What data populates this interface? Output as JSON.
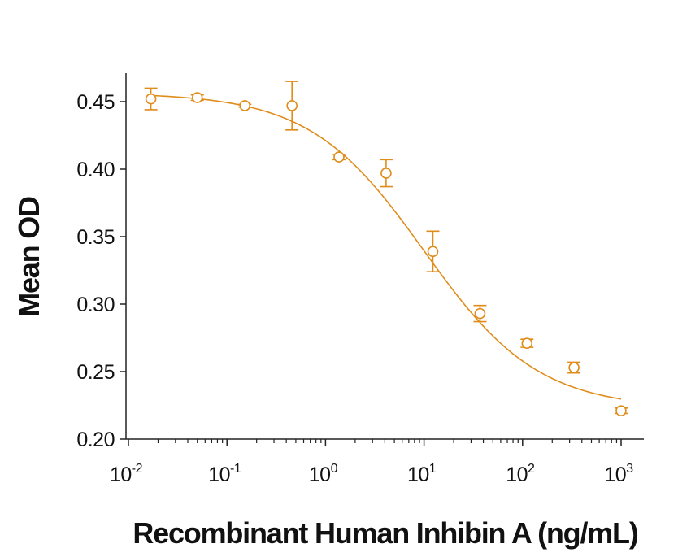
{
  "chart_data": {
    "type": "scatter",
    "title": "",
    "xlabel": "Recombinant Human Inhibin A (ng/mL)",
    "ylabel": "Mean OD",
    "x_scale": "log",
    "xlim": [
      0.01,
      1000
    ],
    "ylim": [
      0.2,
      0.47
    ],
    "grid": false,
    "legend": "none",
    "color": "#E08C1B",
    "y_ticks": [
      "0.20",
      "0.25",
      "0.30",
      "0.35",
      "0.40",
      "0.45"
    ],
    "y_tick_values": [
      0.2,
      0.25,
      0.3,
      0.35,
      0.4,
      0.45
    ],
    "x_ticks": [
      {
        "base": "10",
        "exp": "-2",
        "value": 0.01
      },
      {
        "base": "10",
        "exp": "-1",
        "value": 0.1
      },
      {
        "base": "10",
        "exp": "0",
        "value": 1
      },
      {
        "base": "10",
        "exp": "1",
        "value": 10
      },
      {
        "base": "10",
        "exp": "2",
        "value": 100
      },
      {
        "base": "10",
        "exp": "3",
        "value": 1000
      }
    ],
    "points": [
      {
        "x": 0.0169,
        "y": 0.452,
        "err": 0.008
      },
      {
        "x": 0.05,
        "y": 0.453,
        "err": 0.002
      },
      {
        "x": 0.152,
        "y": 0.447,
        "err": 0.001
      },
      {
        "x": 0.457,
        "y": 0.447,
        "err": 0.018
      },
      {
        "x": 1.37,
        "y": 0.409,
        "err": 0.002
      },
      {
        "x": 4.12,
        "y": 0.397,
        "err": 0.01
      },
      {
        "x": 12.3,
        "y": 0.339,
        "err": 0.015
      },
      {
        "x": 37.0,
        "y": 0.293,
        "err": 0.006
      },
      {
        "x": 111,
        "y": 0.271,
        "err": 0.003
      },
      {
        "x": 333,
        "y": 0.253,
        "err": 0.004
      },
      {
        "x": 1000,
        "y": 0.221,
        "err": 0.002
      }
    ],
    "fit_curve": {
      "type": "4PL",
      "top": 0.4565,
      "bottom": 0.2225,
      "ec50": 10.0,
      "hill": 0.75,
      "x_range": [
        0.0169,
        1000
      ]
    }
  }
}
